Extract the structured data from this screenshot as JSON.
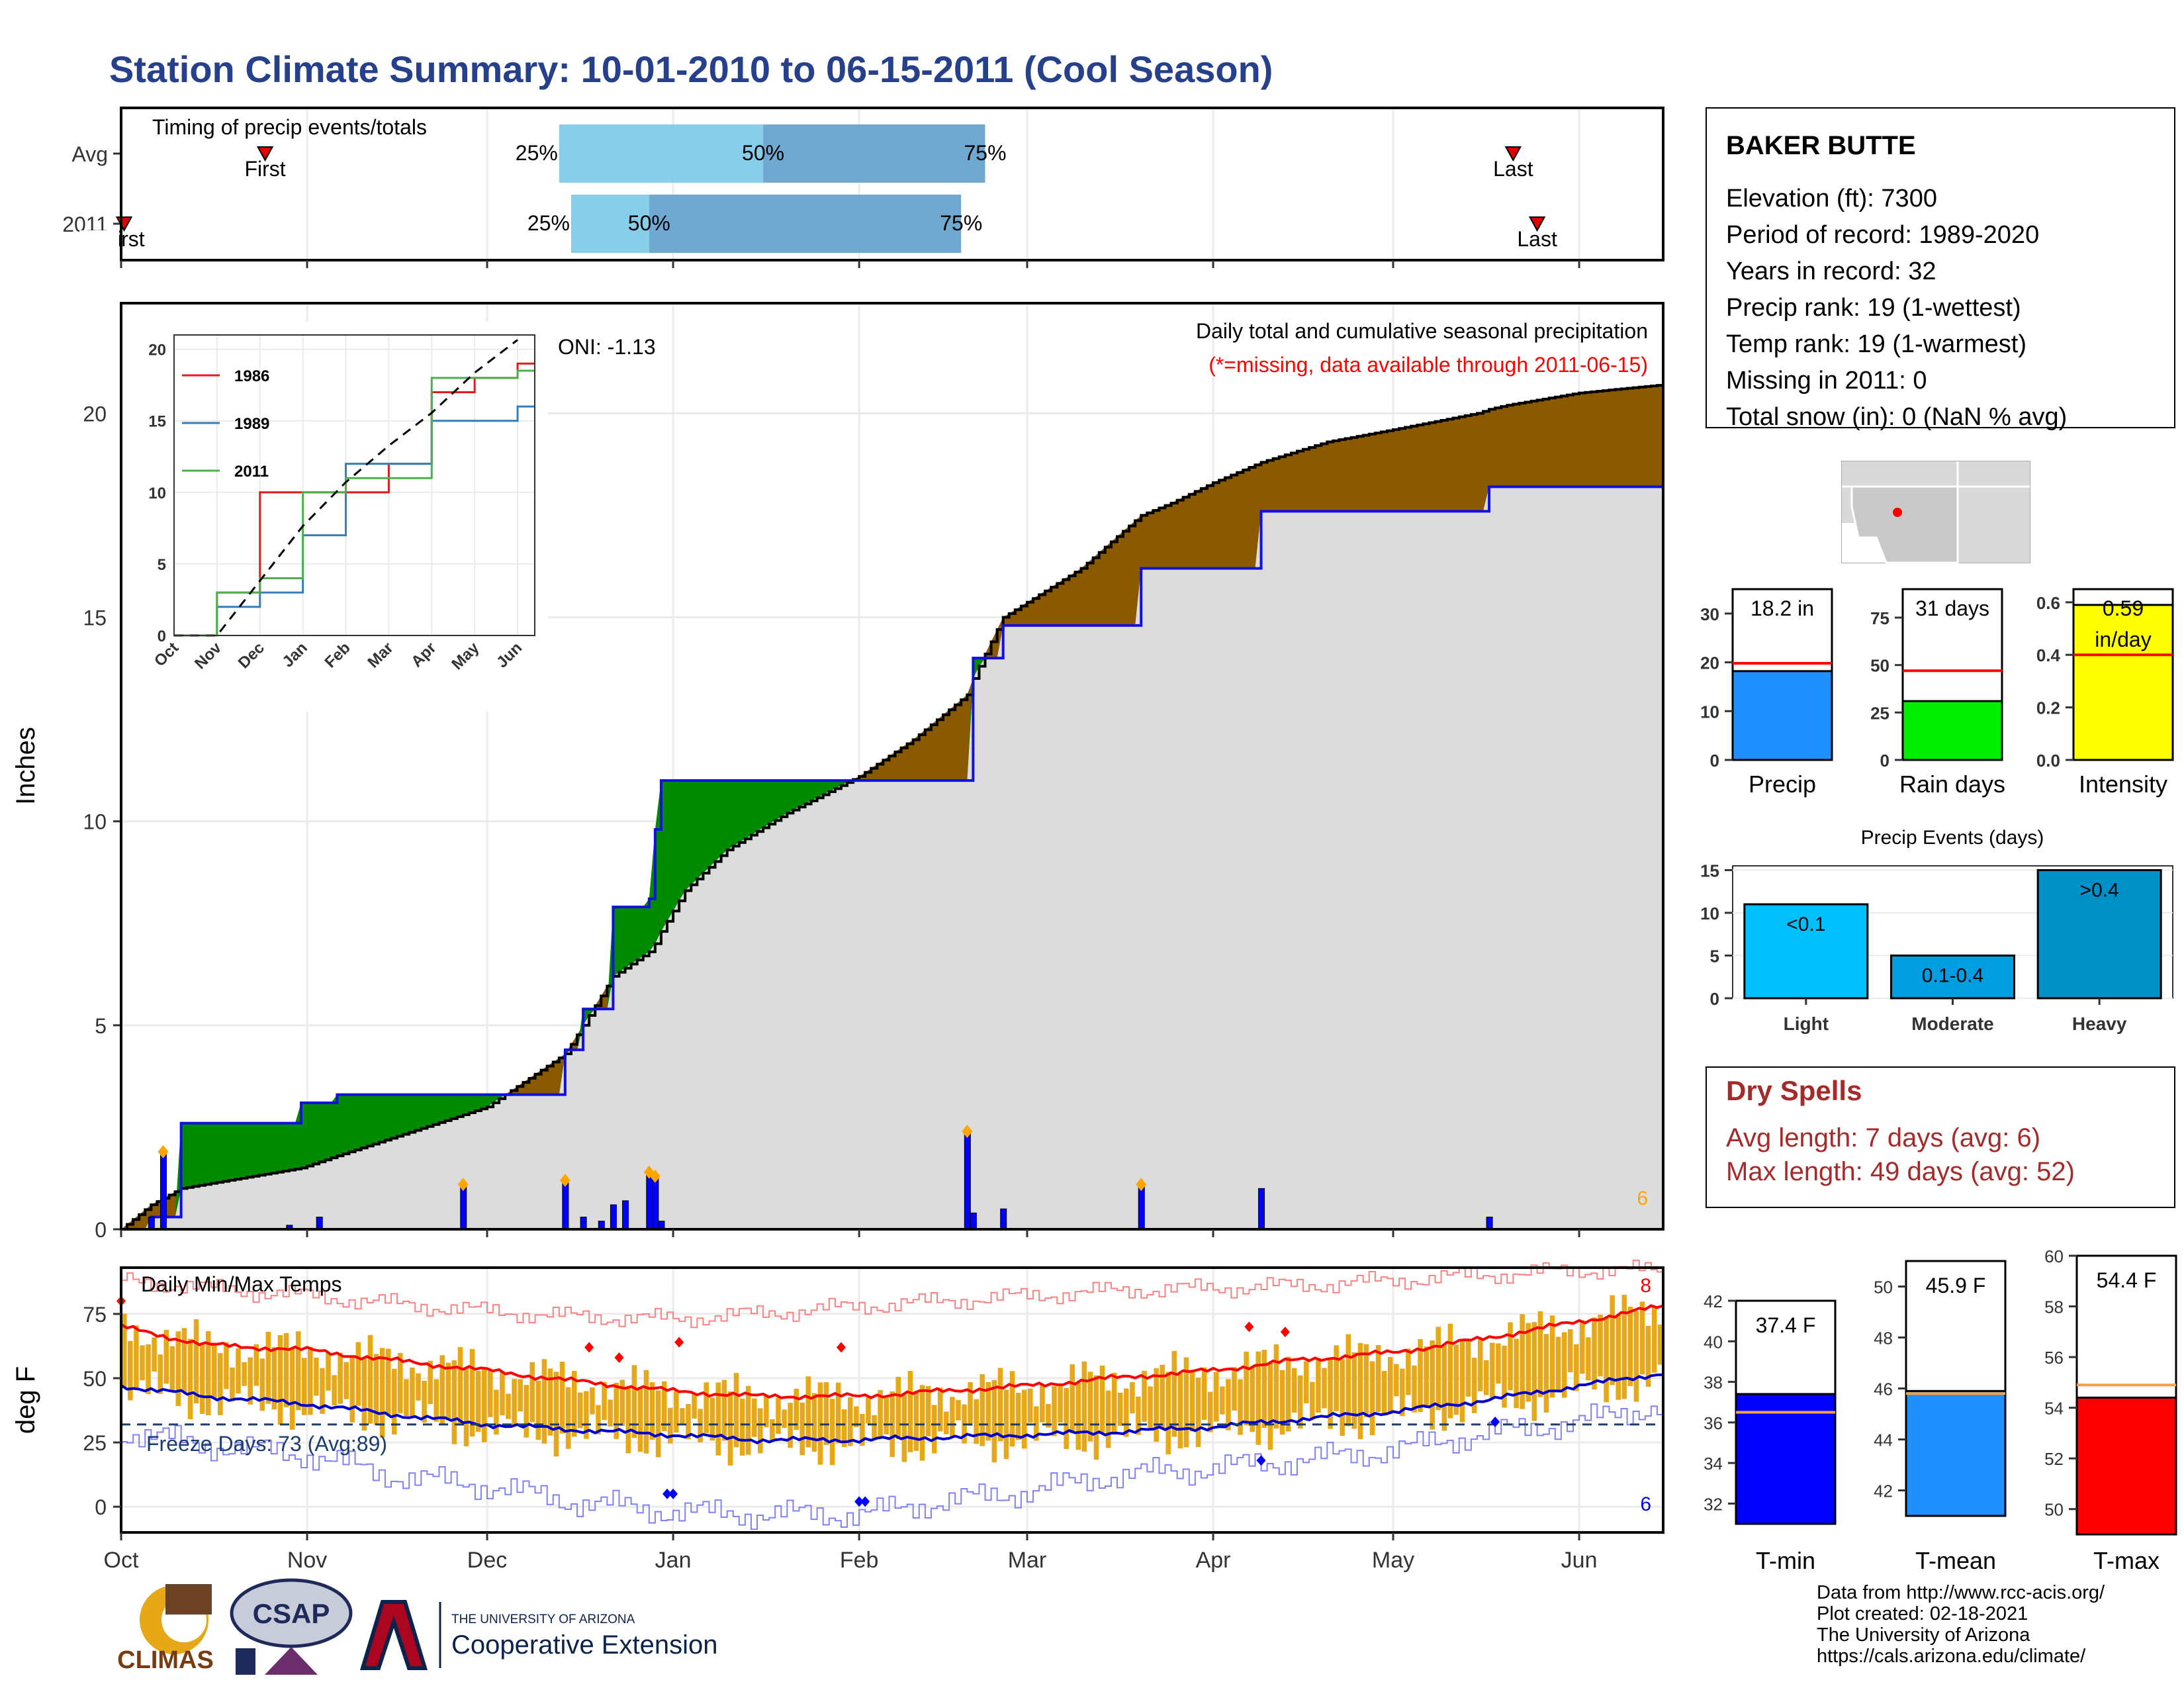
{
  "title": "Station Climate Summary: 10-01-2010 to 06-15-2011 (Cool Season)",
  "months": [
    "Oct",
    "Nov",
    "Dec",
    "Jan",
    "Feb",
    "Mar",
    "Apr",
    "May",
    "Jun"
  ],
  "timing": {
    "label": "Timing of precip events/totals",
    "rows": [
      {
        "name": "Avg",
        "first_label": "First",
        "last_label": "Last",
        "p25": "25%",
        "p50": "50%",
        "p75": "75%"
      },
      {
        "name": "2011",
        "first_label": "First",
        "last_label": "Last",
        "p25": "25%",
        "p50": "50%",
        "p75": "75%"
      }
    ]
  },
  "station": {
    "name": "BAKER BUTTE",
    "lines": [
      "Elevation (ft): 7300",
      "Period of record: 1989-2020",
      "Years in record: 32",
      "Precip rank: 19 (1-wettest)",
      "Temp rank: 19 (1-warmest)",
      "Missing in 2011: 0",
      "Total snow (in): 0 (NaN % avg)"
    ]
  },
  "precip_panel": {
    "ylabel": "Inches",
    "oni": "ONI: -1.13",
    "subtitle": "Daily total and cumulative seasonal precipitation",
    "missing_note": "(*=missing, data available through 2011-06-15)",
    "max_count": "6",
    "yticks": [
      "0",
      "5",
      "10",
      "15",
      "20"
    ]
  },
  "inset": {
    "legend": [
      "1986",
      "1989",
      "2011"
    ],
    "yticks": [
      "0",
      "5",
      "10",
      "15",
      "20"
    ],
    "xticks": [
      "Oct",
      "Nov",
      "Dec",
      "Jan",
      "Feb",
      "Mar",
      "Apr",
      "May",
      "Jun"
    ]
  },
  "temp_panel": {
    "ylabel": "deg F",
    "label": "Daily Min/Max Temps",
    "freeze": "Freeze Days: 73 (Avg:89)",
    "max_count": "8",
    "min_count": "6",
    "yticks": [
      "0",
      "25",
      "50",
      "75"
    ]
  },
  "mini_bars": [
    {
      "label": "Precip",
      "value_text": "18.2 in",
      "yticks": [
        "0",
        "10",
        "20",
        "30"
      ]
    },
    {
      "label": "Rain days",
      "value_text": "31 days",
      "yticks": [
        "0",
        "25",
        "50",
        "75"
      ]
    },
    {
      "label": "Intensity",
      "value_text": "0.59",
      "value_text2": "in/day",
      "yticks": [
        "0.0",
        "0.2",
        "0.4",
        "0.6"
      ]
    }
  ],
  "events": {
    "title": "Precip Events (days)",
    "yticks": [
      "0",
      "5",
      "10",
      "15"
    ],
    "bars": [
      {
        "label": "Light",
        "tag": "<0.1"
      },
      {
        "label": "Moderate",
        "tag": "0.1-0.4"
      },
      {
        "label": "Heavy",
        "tag": ">0.4"
      }
    ]
  },
  "dry": {
    "title": "Dry Spells",
    "avg": "Avg length: 7 days (avg: 6)",
    "max": "Max length: 49 days (avg: 52)"
  },
  "temp_bars": [
    {
      "label": "T-min",
      "value_text": "37.4 F",
      "yticks": [
        "32",
        "34",
        "36",
        "38",
        "40",
        "42"
      ]
    },
    {
      "label": "T-mean",
      "value_text": "45.9 F",
      "yticks": [
        "42",
        "44",
        "46",
        "48",
        "50"
      ]
    },
    {
      "label": "T-max",
      "value_text": "54.4 F",
      "yticks": [
        "50",
        "52",
        "54",
        "56",
        "58",
        "60"
      ]
    }
  ],
  "footer": [
    "Data from http://www.rcc-acis.org/",
    "Plot created: 02-18-2021",
    "The University of Arizona",
    "https://cals.arizona.edu/climate/"
  ],
  "logos": {
    "climas": "CLIMAS",
    "csap": "CSAP",
    "ua_small": "THE UNIVERSITY OF ARIZONA",
    "ua_big": "Cooperative Extension"
  },
  "colors": {
    "title": "#27408b",
    "cum_fill": "#dcdcdc",
    "above": "#8b5a00",
    "below": "#008b00",
    "bar_blue": "#0000ff",
    "temp_bar": "#e6a817",
    "tmax": "#ff0000",
    "tmin": "#0000cd",
    "q_light": "#87ceeb",
    "q_dark": "#6fa8d0",
    "dry_red": "#a52a2a",
    "orange": "#ffa500"
  },
  "chart_data": [
    {
      "type": "line",
      "name": "cumulative_precip",
      "x": [
        "10-01",
        "10-06",
        "10-11",
        "10-31",
        "11-06",
        "12-01",
        "12-14",
        "12-17",
        "12-22",
        "12-28",
        "12-29",
        "12-30",
        "01-03",
        "01-10",
        "01-20",
        "02-01",
        "02-10",
        "02-19",
        "02-20",
        "02-25",
        "03-10",
        "03-20",
        "03-25",
        "04-01",
        "04-09",
        "04-20",
        "05-01",
        "05-15",
        "05-17",
        "05-20",
        "06-01",
        "06-15"
      ],
      "avg_cumulative": [
        0,
        0.6,
        1.0,
        1.5,
        1.8,
        3.0,
        4.3,
        5.0,
        6.2,
        6.8,
        7.0,
        7.3,
        8.3,
        9.3,
        10.2,
        11.1,
        12.0,
        13.1,
        13.5,
        15.0,
        16.2,
        17.5,
        17.8,
        18.3,
        18.8,
        19.3,
        19.6,
        20.0,
        20.1,
        20.2,
        20.5,
        20.7
      ],
      "obs_cumulative": [
        0,
        0.3,
        2.6,
        3.1,
        3.3,
        3.3,
        4.4,
        5.4,
        7.9,
        8.1,
        9.8,
        11.0,
        11.0,
        11.0,
        11.0,
        11.0,
        11.0,
        11.0,
        14.0,
        14.8,
        14.8,
        16.2,
        16.2,
        16.2,
        17.6,
        17.6,
        17.6,
        17.6,
        18.2,
        18.2,
        18.2,
        18.2
      ],
      "ylim": [
        0,
        22
      ]
    },
    {
      "type": "bar",
      "name": "daily_precip",
      "x": [
        "10-06",
        "10-08",
        "10-29",
        "11-03",
        "11-27",
        "12-14",
        "12-17",
        "12-20",
        "12-22",
        "12-24",
        "12-28",
        "12-29",
        "12-30",
        "02-19",
        "02-20",
        "02-25",
        "03-20",
        "04-09",
        "05-17"
      ],
      "values": [
        0.3,
        1.9,
        0.1,
        0.3,
        1.1,
        1.2,
        0.3,
        0.2,
        0.6,
        0.7,
        1.4,
        1.3,
        0.2,
        2.4,
        0.4,
        0.5,
        1.1,
        1.0,
        0.3
      ]
    },
    {
      "type": "line",
      "name": "inset_cumulative",
      "x": [
        "Oct",
        "Nov",
        "Dec",
        "Jan",
        "Feb",
        "Mar",
        "Apr",
        "May",
        "Jun"
      ],
      "series": [
        {
          "name": "1986",
          "values": [
            0,
            3,
            10,
            10,
            10,
            12,
            17,
            18,
            19
          ]
        },
        {
          "name": "1989",
          "values": [
            0,
            2,
            3,
            7,
            12,
            12,
            15,
            15,
            16
          ]
        },
        {
          "name": "2011",
          "values": [
            0,
            3,
            4,
            10,
            11,
            11,
            18,
            18,
            18.5
          ]
        }
      ],
      "ylim": [
        0,
        21
      ]
    },
    {
      "type": "line",
      "name": "daily_temps",
      "x": [
        "10-01",
        "10-15",
        "11-01",
        "11-15",
        "12-01",
        "12-15",
        "01-01",
        "01-15",
        "02-01",
        "02-15",
        "03-01",
        "03-15",
        "04-01",
        "04-15",
        "05-01",
        "05-15",
        "06-01",
        "06-15"
      ],
      "series": [
        {
          "name": "avg_max",
          "values": [
            70,
            63,
            61,
            57,
            53,
            49,
            45,
            43,
            43,
            45,
            47,
            50,
            53,
            57,
            60,
            65,
            72,
            78
          ]
        },
        {
          "name": "avg_min",
          "values": [
            47,
            43,
            40,
            36,
            32,
            30,
            28,
            26,
            26,
            27,
            28,
            29,
            31,
            34,
            37,
            41,
            47,
            52
          ]
        },
        {
          "name": "record_max",
          "values": [
            88,
            85,
            82,
            79,
            76,
            74,
            73,
            75,
            78,
            80,
            82,
            84,
            85,
            86,
            88,
            90,
            92,
            92
          ]
        },
        {
          "name": "record_min",
          "values": [
            29,
            24,
            20,
            12,
            8,
            2,
            -2,
            -3,
            -3,
            2,
            6,
            12,
            15,
            18,
            22,
            28,
            33,
            40
          ]
        }
      ],
      "freeze_line": 32,
      "ylim": [
        -10,
        93
      ]
    },
    {
      "type": "bar",
      "name": "precip_total",
      "value": 18.2,
      "avg": 19.8,
      "ylim": [
        0,
        35
      ]
    },
    {
      "type": "bar",
      "name": "rain_days",
      "value": 31,
      "avg": 47,
      "ylim": [
        0,
        90
      ]
    },
    {
      "type": "bar",
      "name": "intensity",
      "value": 0.59,
      "avg": 0.4,
      "ylim": [
        0,
        0.65
      ]
    },
    {
      "type": "bar",
      "name": "precip_events",
      "categories": [
        "Light",
        "Moderate",
        "Heavy"
      ],
      "values": [
        11,
        5,
        15
      ],
      "ylim": [
        0,
        15.5
      ]
    },
    {
      "type": "bar",
      "name": "tmin",
      "value": 37.4,
      "avg": 36.5,
      "ylim": [
        31,
        42
      ]
    },
    {
      "type": "bar",
      "name": "tmean",
      "value": 45.9,
      "avg": 45.8,
      "ylim": [
        41,
        51
      ]
    },
    {
      "type": "bar",
      "name": "tmax",
      "value": 54.4,
      "avg": 54.9,
      "ylim": [
        49,
        60
      ]
    }
  ]
}
